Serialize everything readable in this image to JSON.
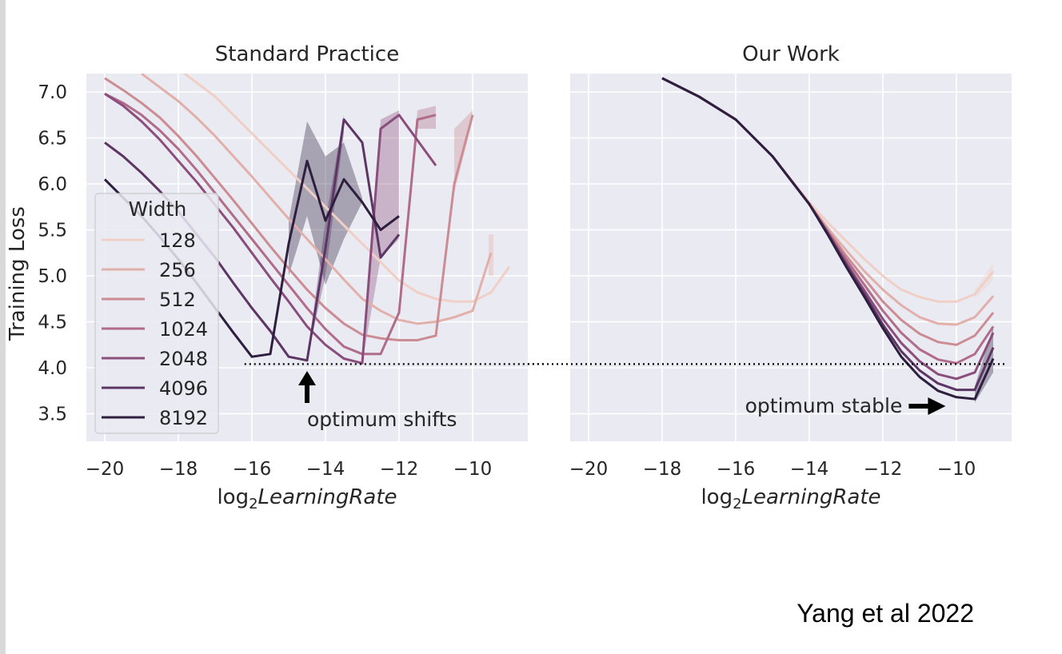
{
  "colors": {
    "panel_bg": "#eaeaf2",
    "grid": "#ffffff",
    "palette": [
      "#f0d0c6",
      "#e2b0aa",
      "#cc8c94",
      "#b06c88",
      "#8a4e7c",
      "#5c3564",
      "#2e1f40"
    ]
  },
  "credit": "Yang et al 2022",
  "chart_data": [
    {
      "type": "line",
      "title": "Standard Practice",
      "xlabel_prefix": "log",
      "xlabel_sub": "2",
      "xlabel_italic": "LearningRate",
      "ylabel": "Training Loss",
      "xlim": [
        -20.5,
        -8.5
      ],
      "ylim": [
        3.2,
        7.2
      ],
      "xticks": [
        -20,
        -18,
        -16,
        -14,
        -12,
        -10
      ],
      "xtick_labels": [
        "−20",
        "−18",
        "−16",
        "−14",
        "−12",
        "−10"
      ],
      "yticks": [
        3.5,
        4.0,
        4.5,
        5.0,
        5.5,
        6.0,
        6.5,
        7.0
      ],
      "ytick_labels": [
        "3.5",
        "4.0",
        "4.5",
        "5.0",
        "5.5",
        "6.0",
        "6.5",
        "7.0"
      ],
      "grid": true,
      "legend": {
        "title": "Width",
        "placement": "lower-left",
        "entries": [
          "128",
          "256",
          "512",
          "1024",
          "2048",
          "4096",
          "8192"
        ]
      },
      "series": [
        {
          "name": "128",
          "x": [
            -18,
            -17.5,
            -17,
            -16.5,
            -16,
            -15.5,
            -15,
            -14.5,
            -14,
            -13.5,
            -13,
            -12.5,
            -12,
            -11.5,
            -11,
            -10.5,
            -10,
            -9.5,
            -9
          ],
          "y": [
            7.25,
            7.1,
            6.95,
            6.75,
            6.55,
            6.35,
            6.15,
            5.95,
            5.75,
            5.55,
            5.35,
            5.15,
            4.95,
            4.82,
            4.75,
            4.72,
            4.72,
            4.82,
            5.1
          ]
        },
        {
          "name": "256",
          "x": [
            -19,
            -18.5,
            -18,
            -17.5,
            -17,
            -16.5,
            -16,
            -15.5,
            -15,
            -14.5,
            -14,
            -13.5,
            -13,
            -12.5,
            -12,
            -11.5,
            -11,
            -10.5,
            -10,
            -9.5
          ],
          "y": [
            7.2,
            7.05,
            6.9,
            6.72,
            6.52,
            6.3,
            6.08,
            5.85,
            5.62,
            5.4,
            5.18,
            4.96,
            4.75,
            4.62,
            4.52,
            4.48,
            4.5,
            4.55,
            4.62,
            5.25
          ]
        },
        {
          "name": "512",
          "x": [
            -20,
            -19.5,
            -19,
            -18.5,
            -18,
            -17.5,
            -17,
            -16.5,
            -16,
            -15.5,
            -15,
            -14.5,
            -14,
            -13.5,
            -13,
            -12.5,
            -12,
            -11.5,
            -11,
            -10.5,
            -10
          ],
          "y": [
            7.15,
            7.02,
            6.88,
            6.72,
            6.52,
            6.3,
            6.06,
            5.82,
            5.57,
            5.32,
            5.08,
            4.85,
            4.65,
            4.48,
            4.36,
            4.32,
            4.3,
            4.3,
            4.35,
            6.0,
            6.75
          ]
        },
        {
          "name": "1024",
          "x": [
            -20,
            -19.5,
            -19,
            -18.5,
            -18,
            -17.5,
            -17,
            -16.5,
            -16,
            -15.5,
            -15,
            -14.5,
            -14,
            -13.5,
            -13,
            -12.5,
            -12,
            -11.5,
            -11
          ],
          "y": [
            6.98,
            6.88,
            6.75,
            6.58,
            6.38,
            6.15,
            5.9,
            5.65,
            5.4,
            5.15,
            4.9,
            4.65,
            4.42,
            4.23,
            4.15,
            4.15,
            4.6,
            6.7,
            6.75
          ]
        },
        {
          "name": "2048",
          "x": [
            -20,
            -19.5,
            -19,
            -18.5,
            -18,
            -17.5,
            -17,
            -16.5,
            -16,
            -15.5,
            -15,
            -14.5,
            -14,
            -13.5,
            -13,
            -12.5,
            -12,
            -11
          ],
          "y": [
            6.98,
            6.85,
            6.68,
            6.48,
            6.25,
            6.02,
            5.77,
            5.52,
            5.25,
            4.98,
            4.72,
            4.45,
            4.25,
            4.1,
            4.05,
            6.6,
            6.75,
            6.2
          ]
        },
        {
          "name": "4096",
          "x": [
            -20,
            -19.5,
            -19,
            -18.5,
            -18,
            -17.5,
            -17,
            -16.5,
            -16,
            -15.5,
            -15,
            -14.5,
            -14,
            -13.5,
            -13,
            -12.5,
            -12
          ],
          "y": [
            6.45,
            6.3,
            6.12,
            5.92,
            5.7,
            5.45,
            5.2,
            4.92,
            4.65,
            4.4,
            4.12,
            4.08,
            5.3,
            6.7,
            6.45,
            5.2,
            5.45
          ]
        },
        {
          "name": "8192",
          "x": [
            -20,
            -19.5,
            -19,
            -18.5,
            -18,
            -17.5,
            -17,
            -16.5,
            -16,
            -15.5,
            -15,
            -14.5,
            -14,
            -13.5,
            -13,
            -12.5,
            -12
          ],
          "y": [
            6.05,
            5.85,
            5.65,
            5.42,
            5.18,
            4.92,
            4.65,
            4.38,
            4.12,
            4.15,
            5.35,
            6.25,
            5.6,
            6.05,
            5.8,
            5.5,
            5.65
          ]
        }
      ],
      "bands": [
        {
          "series": "4096",
          "x": [
            -14.5,
            -14,
            -13.5
          ],
          "low": [
            4.1,
            5.0,
            6.55
          ],
          "high": [
            4.1,
            5.6,
            6.75
          ]
        },
        {
          "series": "8192",
          "x": [
            -15,
            -14.5,
            -14,
            -13.5,
            -13
          ],
          "low": [
            5.0,
            5.65,
            4.9,
            5.4,
            5.8
          ],
          "high": [
            5.6,
            6.68,
            6.3,
            6.45,
            5.85
          ]
        },
        {
          "series": "2048",
          "x": [
            -13,
            -12.5,
            -12
          ],
          "low": [
            4.05,
            5.2,
            5.4
          ],
          "high": [
            4.05,
            6.7,
            6.8
          ]
        },
        {
          "series": "1024",
          "x": [
            -12,
            -11.5,
            -11
          ],
          "low": [
            4.6,
            6.6,
            6.6
          ],
          "high": [
            4.6,
            6.8,
            6.85
          ]
        },
        {
          "series": "512",
          "x": [
            -10.5,
            -10
          ],
          "low": [
            5.9,
            6.7
          ],
          "high": [
            6.6,
            6.8
          ]
        },
        {
          "series": "256",
          "x": [
            -9.5
          ],
          "low": [
            5.0
          ],
          "high": [
            5.45
          ]
        }
      ],
      "reference_line": 4.04,
      "annotation": {
        "text": "optimum shifts",
        "arrow": "up",
        "x": -14.5
      }
    },
    {
      "type": "line",
      "title": "Our Work",
      "xlabel_prefix": "log",
      "xlabel_sub": "2",
      "xlabel_italic": "LearningRate",
      "ylabel": "",
      "xlim": [
        -20.5,
        -8.5
      ],
      "ylim": [
        3.2,
        7.2
      ],
      "xticks": [
        -20,
        -18,
        -16,
        -14,
        -12,
        -10
      ],
      "xtick_labels": [
        "−20",
        "−18",
        "−16",
        "−14",
        "−12",
        "−10"
      ],
      "yticks": [
        3.5,
        4.0,
        4.5,
        5.0,
        5.5,
        6.0,
        6.5,
        7.0
      ],
      "grid": true,
      "series": [
        {
          "name": "128",
          "x": [
            -18,
            -17,
            -16,
            -15,
            -14,
            -13.5,
            -13,
            -12.5,
            -12,
            -11.5,
            -11,
            -10.5,
            -10,
            -9.5,
            -9
          ],
          "y": [
            7.15,
            6.95,
            6.7,
            6.3,
            5.8,
            5.58,
            5.38,
            5.18,
            5.0,
            4.85,
            4.77,
            4.72,
            4.72,
            4.8,
            5.05
          ]
        },
        {
          "name": "256",
          "x": [
            -18,
            -17,
            -16,
            -15,
            -14,
            -13.5,
            -13,
            -12.5,
            -12,
            -11.5,
            -11,
            -10.5,
            -10,
            -9.5,
            -9
          ],
          "y": [
            7.15,
            6.95,
            6.7,
            6.3,
            5.78,
            5.52,
            5.28,
            5.05,
            4.85,
            4.68,
            4.55,
            4.48,
            4.47,
            4.55,
            4.78
          ]
        },
        {
          "name": "512",
          "x": [
            -18,
            -17,
            -16,
            -15,
            -14,
            -13.5,
            -13,
            -12.5,
            -12,
            -11.5,
            -11,
            -10.5,
            -10,
            -9.5,
            -9
          ],
          "y": [
            7.15,
            6.95,
            6.7,
            6.3,
            5.78,
            5.5,
            5.22,
            4.97,
            4.72,
            4.52,
            4.37,
            4.28,
            4.25,
            4.35,
            4.6
          ]
        },
        {
          "name": "1024",
          "x": [
            -18,
            -17,
            -16,
            -15,
            -14,
            -13.5,
            -13,
            -12.5,
            -12,
            -11.5,
            -11,
            -10.5,
            -10,
            -9.5,
            -9
          ],
          "y": [
            7.15,
            6.95,
            6.7,
            6.3,
            5.78,
            5.48,
            5.18,
            4.9,
            4.62,
            4.38,
            4.2,
            4.09,
            4.05,
            4.15,
            4.45
          ]
        },
        {
          "name": "2048",
          "x": [
            -18,
            -17,
            -16,
            -15,
            -14,
            -13.5,
            -13,
            -12.5,
            -12,
            -11.5,
            -11,
            -10.5,
            -10,
            -9.5,
            -9
          ],
          "y": [
            7.15,
            6.95,
            6.7,
            6.3,
            5.78,
            5.47,
            5.14,
            4.84,
            4.53,
            4.27,
            4.07,
            3.93,
            3.88,
            3.95,
            4.38
          ]
        },
        {
          "name": "4096",
          "x": [
            -18,
            -17,
            -16,
            -15,
            -14,
            -13.5,
            -13,
            -12.5,
            -12,
            -11.5,
            -11,
            -10.5,
            -10,
            -9.5,
            -9
          ],
          "y": [
            7.15,
            6.95,
            6.7,
            6.3,
            5.78,
            5.46,
            5.12,
            4.8,
            4.47,
            4.18,
            3.97,
            3.83,
            3.76,
            3.76,
            4.22
          ]
        },
        {
          "name": "8192",
          "x": [
            -18,
            -17,
            -16,
            -15,
            -14,
            -13.5,
            -13,
            -12.5,
            -12,
            -11.5,
            -11,
            -10.5,
            -10,
            -9.5,
            -9
          ],
          "y": [
            7.15,
            6.95,
            6.7,
            6.3,
            5.78,
            5.45,
            5.1,
            4.77,
            4.43,
            4.12,
            3.9,
            3.75,
            3.68,
            3.66,
            4.1
          ]
        }
      ],
      "bands": [
        {
          "series": "128",
          "x": [
            -9.5,
            -9
          ],
          "low": [
            4.75,
            4.95
          ],
          "high": [
            4.85,
            5.15
          ]
        },
        {
          "series": "8192",
          "x": [
            -9.5,
            -9
          ],
          "low": [
            3.62,
            3.95
          ],
          "high": [
            3.8,
            4.45
          ]
        }
      ],
      "reference_line": 4.04,
      "annotation": {
        "text": "optimum stable",
        "arrow": "right",
        "x": -10.6,
        "y": 3.63
      }
    }
  ]
}
